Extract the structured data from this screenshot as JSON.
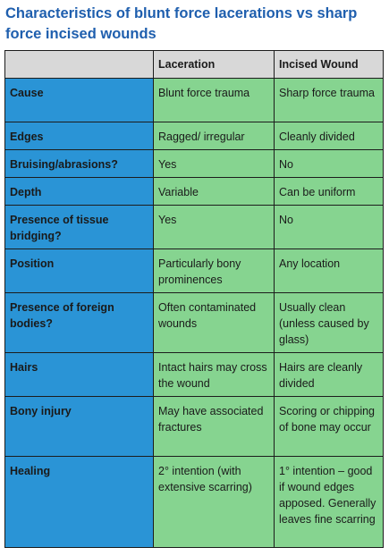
{
  "title": "Characteristics of blunt force lacerations vs sharp force incised wounds",
  "columns": [
    "",
    "Laceration",
    "Incised Wound"
  ],
  "rows": [
    {
      "label": "Cause",
      "laceration": "Blunt force trauma",
      "incised": "Sharp force trauma"
    },
    {
      "label": "Edges",
      "laceration": "Ragged/ irregular",
      "incised": "Cleanly divided"
    },
    {
      "label": "Bruising/abrasions?",
      "laceration": "Yes",
      "incised": "No"
    },
    {
      "label": "Depth",
      "laceration": "Variable",
      "incised": "Can be uniform"
    },
    {
      "label": "Presence of tissue bridging?",
      "laceration": "Yes",
      "incised": "No"
    },
    {
      "label": "Position",
      "laceration": "Particularly bony prominences",
      "incised": "Any location"
    },
    {
      "label": "Presence of foreign bodies?",
      "laceration": "Often contaminated wounds",
      "incised": "Usually clean (unless caused by glass)"
    },
    {
      "label": "Hairs",
      "laceration": "Intact hairs may cross the wound",
      "incised": "Hairs are cleanly divided"
    },
    {
      "label": "Bony injury",
      "laceration": "May have associated fractures",
      "incised": "Scoring or chipping of bone may occur"
    },
    {
      "label": "Healing",
      "laceration": "2° intention (with extensive scarring)",
      "incised": "1° intention – good if wound edges apposed. Generally leaves fine scarring"
    }
  ],
  "colors": {
    "title": "#1f5fae",
    "header_bg": "#d8d8d8",
    "row_label_bg": "#2a94d6",
    "cell_bg": "#86d490"
  }
}
